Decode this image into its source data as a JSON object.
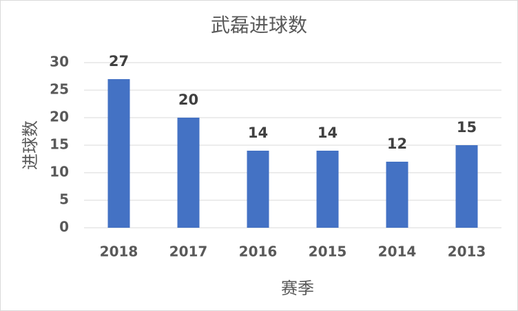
{
  "chart_data": {
    "type": "bar",
    "title": "武磊进球数",
    "x_label": "赛季",
    "y_label": "进球数",
    "categories": [
      "2018",
      "2017",
      "2016",
      "2015",
      "2014",
      "2013"
    ],
    "values": [
      27,
      20,
      14,
      14,
      12,
      15
    ],
    "color": "#4472c4",
    "ylim": [
      0,
      30
    ],
    "yticks": [
      0,
      5,
      10,
      15,
      20,
      25,
      30
    ],
    "grid": true,
    "data_labels": true
  }
}
